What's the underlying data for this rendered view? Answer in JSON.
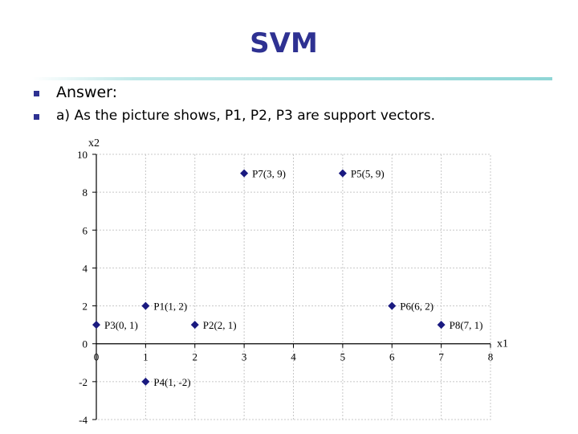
{
  "slide": {
    "title": "SVM",
    "bullets": [
      "Answer:",
      "a) As the picture shows, P1, P2, P3 are support vectors."
    ],
    "colors": {
      "title": "#2e3192",
      "bullet": "#2e3192",
      "marker": "#1a1a80",
      "rule": "#8fd6d6"
    }
  },
  "chart_data": {
    "type": "scatter",
    "xlabel": "x1",
    "ylabel": "x2",
    "xlim": [
      0,
      8
    ],
    "ylim": [
      -4,
      10
    ],
    "xticks": [
      "0",
      "1",
      "2",
      "3",
      "4",
      "5",
      "6",
      "7",
      "8"
    ],
    "yticks": [
      "10",
      "8",
      "6",
      "4",
      "2",
      "0",
      "-2",
      "-4"
    ],
    "grid": true,
    "points": [
      {
        "label": "P1(1, 2)",
        "x": 1,
        "y": 2
      },
      {
        "label": "P2(2, 1)",
        "x": 2,
        "y": 1
      },
      {
        "label": "P3(0, 1)",
        "x": 0,
        "y": 1
      },
      {
        "label": "P4(1, -2)",
        "x": 1,
        "y": -2
      },
      {
        "label": "P5(5, 9)",
        "x": 5,
        "y": 9
      },
      {
        "label": "P6(6, 2)",
        "x": 6,
        "y": 2
      },
      {
        "label": "P7(3, 9)",
        "x": 3,
        "y": 9
      },
      {
        "label": "P8(7, 1)",
        "x": 7,
        "y": 1
      }
    ]
  }
}
